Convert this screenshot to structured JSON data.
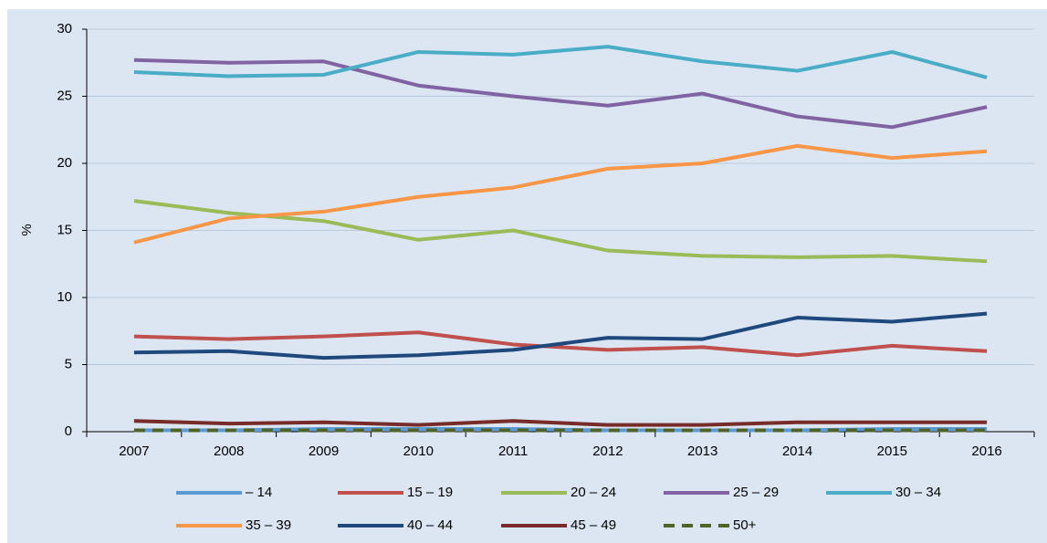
{
  "chart_data": {
    "type": "line",
    "y_label": "%",
    "categories": [
      "2007",
      "2008",
      "2009",
      "2010",
      "2011",
      "2012",
      "2013",
      "2014",
      "2015",
      "2016"
    ],
    "series": [
      {
        "name": "– 14",
        "color": "#5b9bd5",
        "values": [
          0.1,
          0.1,
          0.2,
          0.2,
          0.2,
          0.1,
          0.1,
          0.1,
          0.2,
          0.2
        ]
      },
      {
        "name": "15 – 19",
        "color": "#c0504d",
        "values": [
          7.1,
          6.9,
          7.1,
          7.4,
          6.5,
          6.1,
          6.3,
          5.7,
          6.4,
          6.0
        ]
      },
      {
        "name": "20 –  24",
        "color": "#9bbb59",
        "values": [
          17.2,
          16.3,
          15.7,
          14.3,
          15.0,
          13.5,
          13.1,
          13.0,
          13.1,
          12.7
        ]
      },
      {
        "name": "25 –  29",
        "color": "#8064a2",
        "values": [
          27.7,
          27.5,
          27.6,
          25.8,
          25.0,
          24.3,
          25.2,
          23.5,
          22.7,
          24.2
        ]
      },
      {
        "name": "30 –  34",
        "color": "#4bacc6",
        "values": [
          26.8,
          26.5,
          26.6,
          28.3,
          28.1,
          28.7,
          27.6,
          26.9,
          28.3,
          26.4
        ]
      },
      {
        "name": "35 –  39",
        "color": "#f79646",
        "values": [
          14.1,
          15.9,
          16.4,
          17.5,
          18.2,
          19.6,
          20.0,
          21.3,
          20.4,
          20.9
        ]
      },
      {
        "name": "40 –  44",
        "color": "#1f497d",
        "values": [
          5.9,
          6.0,
          5.5,
          5.7,
          6.1,
          7.0,
          6.9,
          8.5,
          8.2,
          8.8
        ]
      },
      {
        "name": "45 –  49",
        "color": "#772c2a",
        "values": [
          0.8,
          0.6,
          0.7,
          0.5,
          0.8,
          0.5,
          0.5,
          0.7,
          0.7,
          0.7
        ]
      },
      {
        "name": "50+",
        "color": "#4f6228",
        "dashed": true,
        "values": [
          0.1,
          0.1,
          0.1,
          0.1,
          0.1,
          0.1,
          0.1,
          0.1,
          0.1,
          0.1
        ]
      }
    ],
    "ylim": [
      0,
      30
    ],
    "yticks": [
      0,
      5,
      10,
      15,
      20,
      25,
      30
    ],
    "grid": true,
    "legend": "bottom"
  }
}
